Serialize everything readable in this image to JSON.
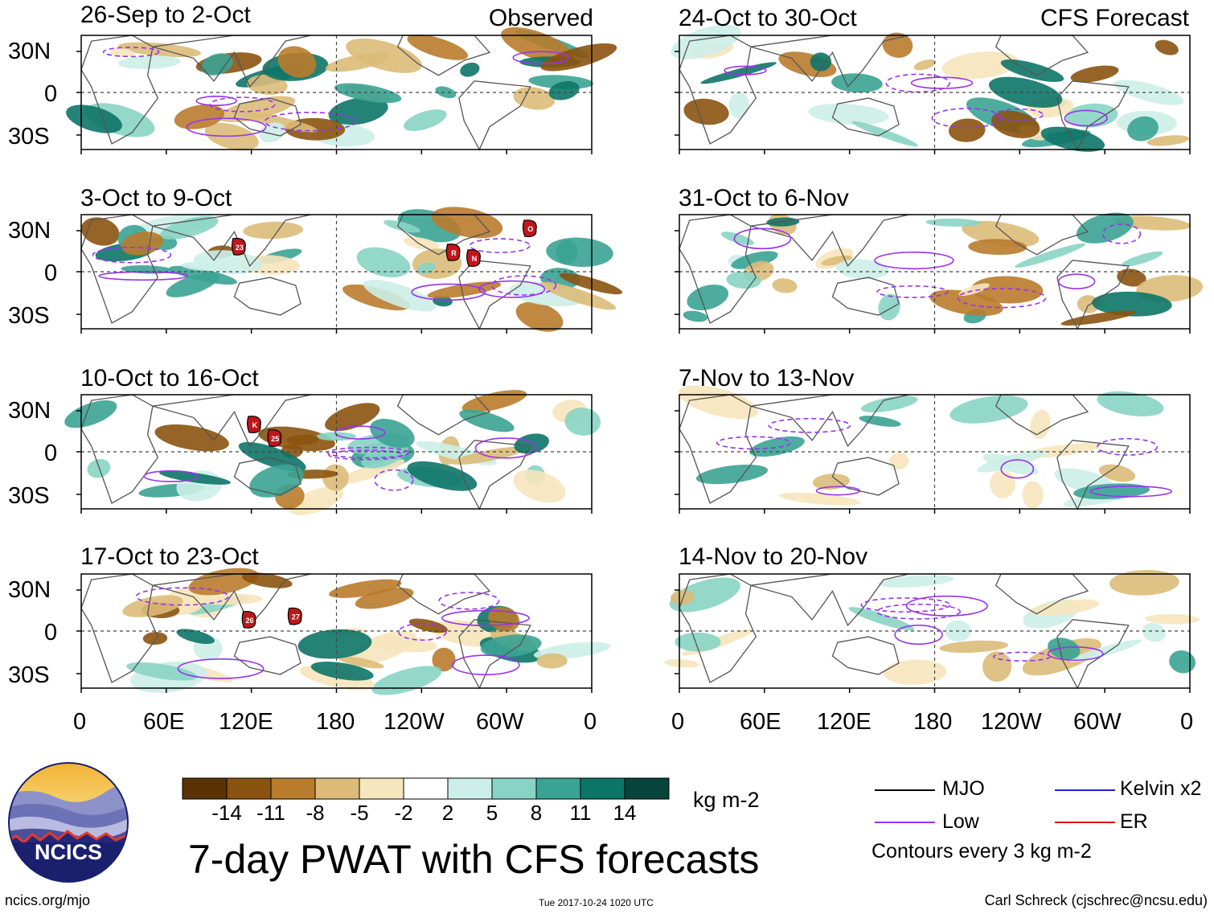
{
  "panels": {
    "observed_label": "Observed",
    "forecast_label": "CFS Forecast",
    "left": [
      {
        "date": "26-Sep to 2-Oct",
        "storms": []
      },
      {
        "date": "3-Oct to 9-Oct",
        "storms": [
          "23",
          "R",
          "N",
          "O"
        ]
      },
      {
        "date": "10-Oct to 16-Oct",
        "storms": [
          "K",
          "25"
        ]
      },
      {
        "date": "17-Oct to 23-Oct",
        "storms": [
          "26",
          "27"
        ]
      }
    ],
    "right": [
      {
        "date": "24-Oct to 30-Oct"
      },
      {
        "date": "31-Oct to 6-Nov"
      },
      {
        "date": "7-Nov to 13-Nov"
      },
      {
        "date": "14-Nov to 20-Nov"
      }
    ]
  },
  "axes": {
    "lat_ticks": [
      "30N",
      "0",
      "30S"
    ],
    "lon_ticks": [
      "0",
      "60E",
      "120E",
      "180",
      "120W",
      "60W",
      "0"
    ]
  },
  "colorbar": {
    "colors": [
      "#5a3204",
      "#8b5310",
      "#b97b2c",
      "#dcbb78",
      "#f6e6bd",
      "#ffffff",
      "#cdeee8",
      "#88d4c4",
      "#3aa393",
      "#0d7468",
      "#07443b"
    ],
    "labels": [
      "-14",
      "-11",
      "-8",
      "-5",
      "-2",
      "2",
      "5",
      "8",
      "11",
      "14"
    ],
    "unit": "kg m-2"
  },
  "legend": {
    "items": [
      {
        "label": "MJO",
        "color": "#000000"
      },
      {
        "label": "Kelvin x2",
        "color": "#2222cc"
      },
      {
        "label": "Low",
        "color": "#9933ee"
      },
      {
        "label": "ER",
        "color": "#dd1111"
      }
    ],
    "note": "Contours every 3 kg m-2"
  },
  "title": "7-day PWAT with CFS forecasts",
  "logo_text": "NCICS",
  "footer": {
    "url": "ncics.org/mjo",
    "timestamp": "Tue 2017-10-24 1020 UTC",
    "author": "Carl Schreck (cjschrec@ncsu.edu)"
  }
}
